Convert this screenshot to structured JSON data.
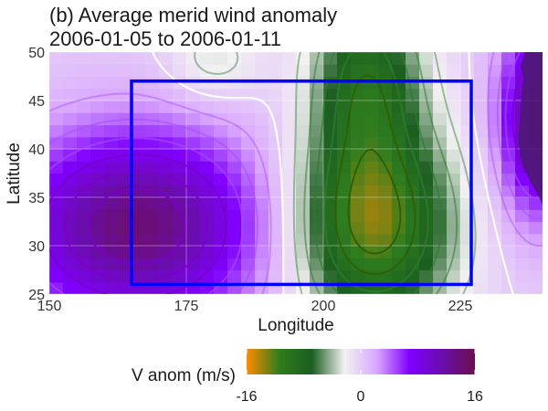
{
  "chart_data": {
    "type": "heatmap",
    "title_lines": [
      "(b) Average merid wind anomaly",
      "2006-01-05 to 2006-01-11"
    ],
    "xlabel": "Longitude",
    "ylabel": "Latitude",
    "xlim": [
      150,
      240
    ],
    "ylim": [
      25,
      50
    ],
    "x_ticks": [
      150,
      175,
      200,
      225
    ],
    "y_ticks": [
      25,
      30,
      35,
      40,
      45,
      50
    ],
    "grid": true,
    "legend": {
      "title": "V anom (m/s)",
      "position": "bottom",
      "range": [
        -16,
        16
      ],
      "tick_values": [
        -16,
        0,
        16
      ],
      "tick_labels": [
        "-16",
        "0",
        "16"
      ],
      "colors": [
        "#ff8c00",
        "#2e7d1e",
        "#1b5e20",
        "#f2f2f2",
        "#d9a6ff",
        "#8000ff",
        "#6a0dad",
        "#6b0f4a"
      ]
    },
    "field_centers": [
      {
        "lon": 166,
        "lat": 32,
        "value": 14,
        "lon_spread": 16,
        "lat_spread": 7
      },
      {
        "lon": 209,
        "lat": 32,
        "value": -13,
        "lon_spread": 10,
        "lat_spread": 7
      },
      {
        "lon": 208,
        "lat": 47,
        "value": -9,
        "lon_spread": 7,
        "lat_spread": 7
      },
      {
        "lon": 239,
        "lat": 43,
        "value": 12,
        "lon_spread": 5,
        "lat_spread": 7
      },
      {
        "lon": 180,
        "lat": 49,
        "value": -3,
        "lon_spread": 6,
        "lat_spread": 3
      }
    ],
    "region_box": {
      "lon": [
        165,
        227
      ],
      "lat": [
        26,
        47
      ],
      "color": "#0000ff"
    }
  }
}
